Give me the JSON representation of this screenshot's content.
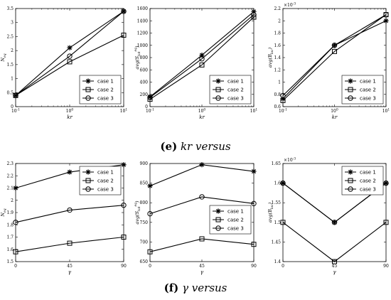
{
  "captions": {
    "e": {
      "tag": "(e)",
      "text": "kr versus"
    },
    "f": {
      "tag": "(f)",
      "text": "γ versus"
    }
  },
  "colors": {
    "line": "#000000",
    "background": "#ffffff",
    "axes": "#000000"
  },
  "markers": {
    "case 1": "star",
    "case 2": "square",
    "case 3": "circle"
  },
  "chart_data": [
    {
      "id": "e1",
      "type": "line",
      "xscale": "log",
      "xlabel": "kr",
      "ylabel": "N_eq",
      "x": [
        0.1,
        1,
        10
      ],
      "xticklabels": [
        "10^-1",
        "10^0",
        "10^1"
      ],
      "ylim": [
        0,
        3.5
      ],
      "yticks": [
        0,
        0.5,
        1,
        1.5,
        2,
        2.5,
        3,
        3.5
      ],
      "yticklabels": [
        "0",
        "0.5",
        "1",
        "1.5",
        "2",
        "2.5",
        "3",
        "3.5"
      ],
      "series": [
        {
          "name": "case 1",
          "values": [
            0.4,
            2.1,
            3.4
          ]
        },
        {
          "name": "case 2",
          "values": [
            0.4,
            1.6,
            2.55
          ]
        },
        {
          "name": "case 3",
          "values": [
            0.4,
            1.8,
            3.4
          ]
        }
      ],
      "legend": "bottom-right",
      "grid": false
    },
    {
      "id": "e2",
      "type": "line",
      "xscale": "log",
      "xlabel": "kr",
      "ylabel": "avg(S_tot^eq)",
      "x": [
        0.1,
        1,
        10
      ],
      "xticklabels": [
        "10^-1",
        "10^0",
        "10^1"
      ],
      "ylim": [
        0,
        1600
      ],
      "yticks": [
        0,
        200,
        400,
        600,
        800,
        1000,
        1200,
        1400,
        1600
      ],
      "yticklabels": [
        "0",
        "200",
        "400",
        "600",
        "800",
        "1000",
        "1200",
        "1400",
        "1600"
      ],
      "series": [
        {
          "name": "case 1",
          "values": [
            160,
            840,
            1550
          ]
        },
        {
          "name": "case 2",
          "values": [
            120,
            680,
            1460
          ]
        },
        {
          "name": "case 3",
          "values": [
            150,
            780,
            1500
          ]
        }
      ],
      "legend": "bottom-right",
      "grid": false
    },
    {
      "id": "e3",
      "type": "line",
      "xscale": "log",
      "xlabel": "kr",
      "ylabel": "avg(B_loc)",
      "yexponent": "10^-3",
      "x": [
        0.1,
        1,
        10
      ],
      "xticklabels": [
        "10^-1",
        "10^0",
        "10^1"
      ],
      "ylim": [
        0.6,
        2.2
      ],
      "yticks": [
        0.6,
        0.8,
        1,
        1.2,
        1.4,
        1.6,
        1.8,
        2,
        2.2
      ],
      "yticklabels": [
        "0.6",
        "0.8",
        "1",
        "1.2",
        "1.4",
        "1.6",
        "1.8",
        "2",
        "2.2"
      ],
      "series": [
        {
          "name": "case 1",
          "values": [
            0.73,
            1.6,
            2.0
          ]
        },
        {
          "name": "case 2",
          "values": [
            0.7,
            1.5,
            2.1
          ]
        },
        {
          "name": "case 3",
          "values": [
            0.78,
            1.6,
            2.1
          ]
        }
      ],
      "legend": "bottom-right",
      "grid": false
    },
    {
      "id": "f1",
      "type": "line",
      "xscale": "linear",
      "xlabel": "γ",
      "ylabel": "N_eq",
      "x": [
        0,
        45,
        90
      ],
      "xticklabels": [
        "0",
        "45",
        "90"
      ],
      "ylim": [
        1.5,
        2.3
      ],
      "yticks": [
        1.5,
        1.6,
        1.7,
        1.8,
        1.9,
        2.0,
        2.1,
        2.2,
        2.3
      ],
      "yticklabels": [
        "1.5",
        "1.6",
        "1.7",
        "1.8",
        "1.9",
        "2",
        "2.1",
        "2.2",
        "2.3"
      ],
      "series": [
        {
          "name": "case 1",
          "values": [
            2.1,
            2.23,
            2.29
          ]
        },
        {
          "name": "case 2",
          "values": [
            1.58,
            1.65,
            1.7
          ]
        },
        {
          "name": "case 3",
          "values": [
            1.82,
            1.92,
            1.96
          ]
        }
      ],
      "legend": "top-right",
      "grid": false
    },
    {
      "id": "f2",
      "type": "line",
      "xscale": "linear",
      "xlabel": "γ",
      "ylabel": "avg(S_tot^eq)",
      "x": [
        0,
        45,
        90
      ],
      "xticklabels": [
        "0",
        "45",
        "90"
      ],
      "ylim": [
        650,
        900
      ],
      "yticks": [
        650,
        700,
        750,
        800,
        850,
        900
      ],
      "yticklabels": [
        "650",
        "700",
        "750",
        "800",
        "850",
        "900"
      ],
      "series": [
        {
          "name": "case 1",
          "values": [
            843,
            897,
            880
          ]
        },
        {
          "name": "case 2",
          "values": [
            675,
            708,
            694
          ]
        },
        {
          "name": "case 3",
          "values": [
            772,
            815,
            798
          ]
        }
      ],
      "legend": "middle-right",
      "grid": false
    },
    {
      "id": "f3",
      "type": "line",
      "xscale": "linear",
      "xlabel": "γ",
      "ylabel": "avg(B_loc)",
      "yexponent": "10^-3",
      "x": [
        0,
        45,
        90
      ],
      "xticklabels": [
        "0",
        "45",
        "90"
      ],
      "ylim": [
        1.4,
        1.65
      ],
      "yticks": [
        1.4,
        1.45,
        1.5,
        1.55,
        1.6,
        1.65
      ],
      "yticklabels": [
        "1.4",
        "1.45",
        "1.5",
        "1.55",
        "1.6",
        "1.65"
      ],
      "series": [
        {
          "name": "case 1",
          "values": [
            1.6,
            1.5,
            1.6
          ]
        },
        {
          "name": "case 2",
          "values": [
            1.5,
            1.4,
            1.5
          ]
        },
        {
          "name": "case 3",
          "values": [
            1.6,
            1.5,
            1.6
          ]
        }
      ],
      "legend": "top-right",
      "grid": false
    }
  ]
}
